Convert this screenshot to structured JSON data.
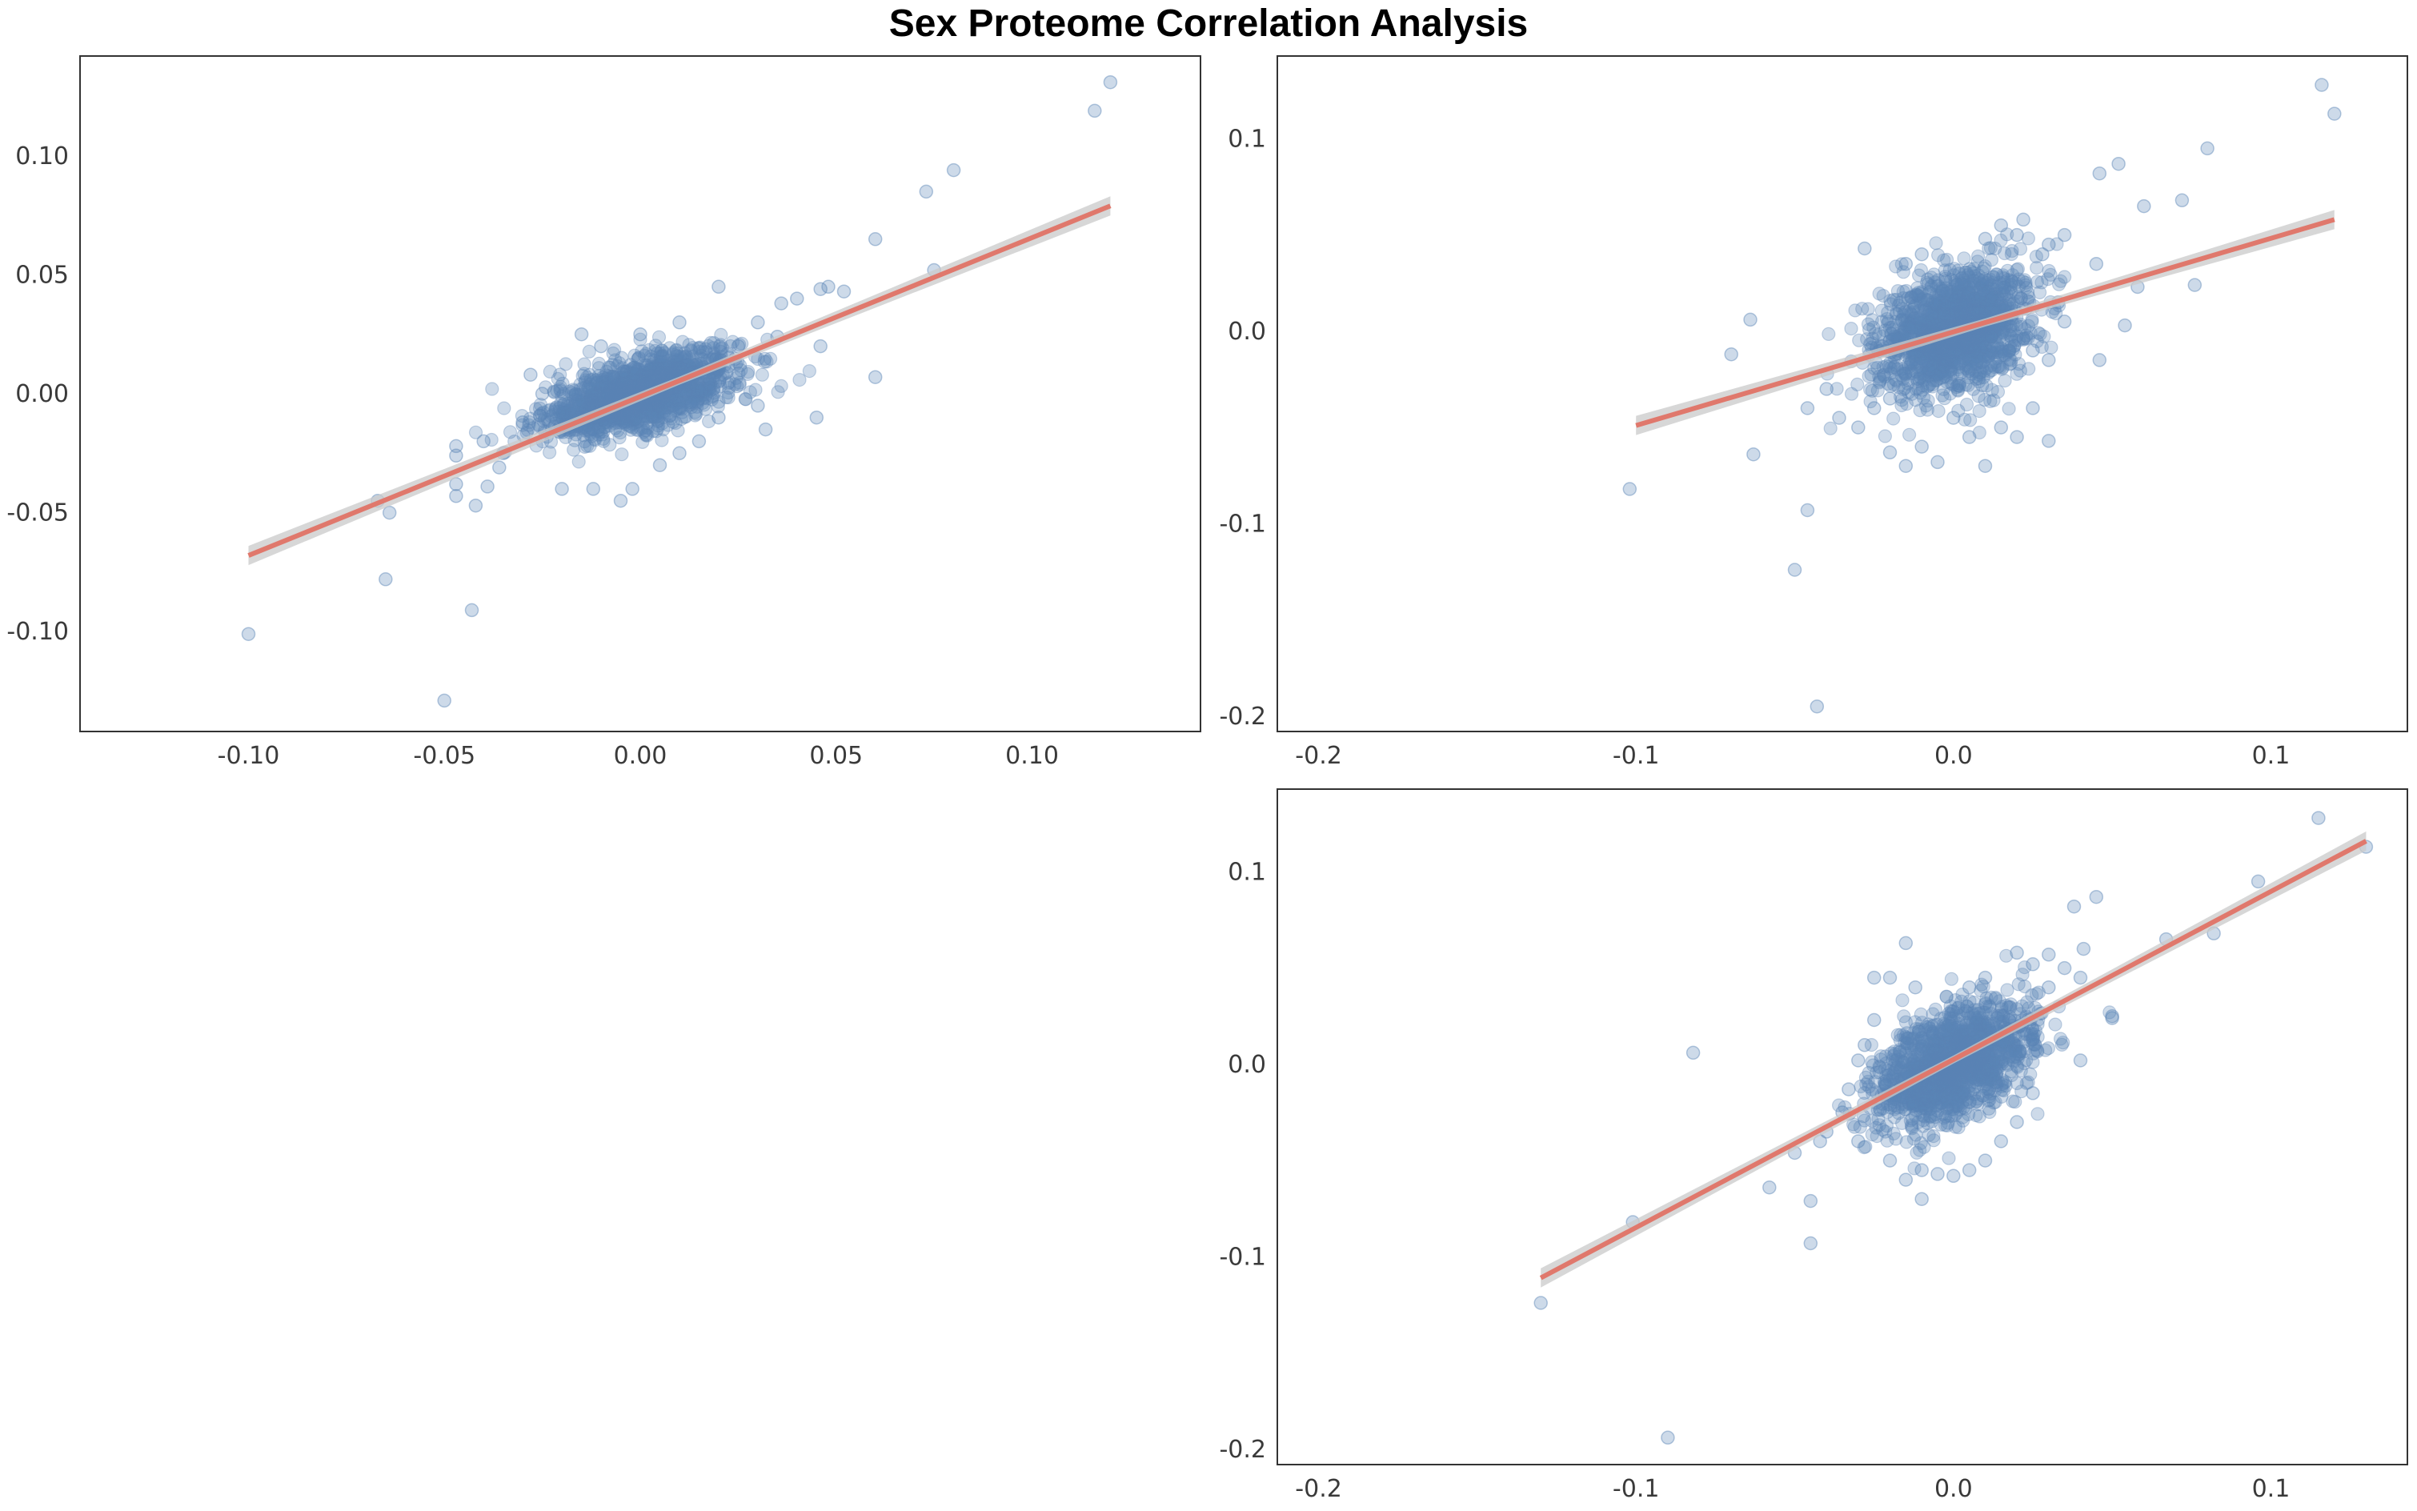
{
  "title": "Sex Proteome Correlation Analysis",
  "colors": {
    "points": "#5b84b5",
    "fit_line": "#e0786c",
    "confidence_band": "#c9c9c9",
    "frame": "#333333",
    "background": "#ffffff"
  },
  "chart_data": [
    {
      "type": "scatter",
      "title": "",
      "xlabel": "",
      "ylabel": "",
      "grid": false,
      "legend": "none",
      "xlim": [
        -0.143,
        0.143
      ],
      "ylim": [
        -0.142,
        0.142
      ],
      "x_ticks": [
        -0.1,
        -0.05,
        0.0,
        0.05,
        0.1
      ],
      "x_tick_labels": [
        "-0.10",
        "-0.05",
        "0.00",
        "0.05",
        "0.10"
      ],
      "y_ticks": [
        -0.1,
        -0.05,
        0.0,
        0.05,
        0.1
      ],
      "y_tick_labels": [
        "-0.10",
        "-0.05",
        "0.00",
        "0.05",
        "0.10"
      ],
      "fit_line": {
        "x": [
          -0.1,
          0.12
        ],
        "y": [
          -0.068,
          0.079
        ]
      },
      "cluster": {
        "center": [
          0.0,
          0.0
        ],
        "spread": [
          0.012,
          0.009
        ],
        "rho": 0.6,
        "count": 1500
      },
      "points": [
        [
          0.12,
          0.131
        ],
        [
          0.116,
          0.119
        ],
        [
          0.08,
          0.094
        ],
        [
          0.073,
          0.085
        ],
        [
          0.06,
          0.065
        ],
        [
          0.075,
          0.052
        ],
        [
          0.052,
          0.043
        ],
        [
          0.048,
          0.045
        ],
        [
          0.046,
          0.044
        ],
        [
          0.04,
          0.04
        ],
        [
          0.036,
          0.038
        ],
        [
          0.02,
          0.045
        ],
        [
          0.03,
          0.03
        ],
        [
          0.035,
          0.024
        ],
        [
          0.046,
          0.02
        ],
        [
          0.06,
          0.007
        ],
        [
          0.045,
          -0.01
        ],
        [
          0.032,
          -0.015
        ],
        [
          0.03,
          -0.005
        ],
        [
          0.02,
          -0.01
        ],
        [
          -0.1,
          -0.101
        ],
        [
          -0.065,
          -0.078
        ],
        [
          -0.043,
          -0.091
        ],
        [
          -0.05,
          -0.129
        ],
        [
          -0.067,
          -0.045
        ],
        [
          -0.064,
          -0.05
        ],
        [
          -0.047,
          -0.038
        ],
        [
          -0.047,
          -0.043
        ],
        [
          -0.042,
          -0.047
        ],
        [
          -0.039,
          -0.039
        ],
        [
          -0.047,
          -0.026
        ],
        [
          -0.047,
          -0.022
        ],
        [
          -0.036,
          -0.031
        ],
        [
          -0.04,
          -0.02
        ],
        [
          -0.035,
          -0.025
        ],
        [
          -0.03,
          -0.012
        ],
        [
          -0.028,
          0.008
        ],
        [
          -0.025,
          0.0
        ],
        [
          -0.02,
          -0.04
        ],
        [
          -0.012,
          -0.04
        ],
        [
          -0.005,
          -0.045
        ],
        [
          -0.002,
          -0.04
        ],
        [
          0.005,
          -0.03
        ],
        [
          0.015,
          -0.02
        ],
        [
          0.01,
          0.03
        ],
        [
          -0.01,
          0.02
        ],
        [
          -0.015,
          0.025
        ],
        [
          0.0,
          0.025
        ],
        [
          0.025,
          0.02
        ],
        [
          0.01,
          -0.025
        ]
      ]
    },
    {
      "type": "scatter",
      "title": "",
      "xlabel": "",
      "ylabel": "",
      "grid": false,
      "legend": "none",
      "xlim": [
        -0.213,
        0.143
      ],
      "ylim": [
        -0.208,
        0.143
      ],
      "x_ticks": [
        -0.2,
        -0.1,
        0.0,
        0.1
      ],
      "x_tick_labels": [
        "-0.2",
        "-0.1",
        "0.0",
        "0.1"
      ],
      "y_ticks": [
        -0.2,
        -0.1,
        0.0,
        0.1
      ],
      "y_tick_labels": [
        "-0.2",
        "-0.1",
        "0.0",
        "0.1"
      ],
      "fit_line": {
        "x": [
          -0.1,
          0.12
        ],
        "y": [
          -0.049,
          0.058
        ]
      },
      "cluster": {
        "center": [
          0.0,
          0.0
        ],
        "spread": [
          0.012,
          0.016
        ],
        "rho": 0.3,
        "count": 1500
      },
      "points": [
        [
          0.116,
          0.128
        ],
        [
          0.12,
          0.113
        ],
        [
          0.08,
          0.095
        ],
        [
          0.052,
          0.087
        ],
        [
          0.046,
          0.082
        ],
        [
          0.072,
          0.068
        ],
        [
          0.06,
          0.065
        ],
        [
          0.076,
          0.024
        ],
        [
          0.058,
          0.023
        ],
        [
          0.045,
          0.035
        ],
        [
          0.035,
          0.05
        ],
        [
          0.03,
          0.045
        ],
        [
          0.022,
          0.058
        ],
        [
          0.028,
          0.04
        ],
        [
          0.033,
          0.015
        ],
        [
          0.035,
          0.005
        ],
        [
          0.054,
          0.003
        ],
        [
          0.046,
          -0.015
        ],
        [
          0.03,
          -0.015
        ],
        [
          0.025,
          -0.01
        ],
        [
          -0.102,
          -0.082
        ],
        [
          -0.05,
          -0.124
        ],
        [
          -0.043,
          -0.195
        ],
        [
          -0.046,
          -0.093
        ],
        [
          -0.063,
          -0.064
        ],
        [
          -0.064,
          0.006
        ],
        [
          -0.07,
          -0.012
        ],
        [
          -0.046,
          -0.04
        ],
        [
          -0.04,
          -0.03
        ],
        [
          -0.036,
          -0.045
        ],
        [
          -0.03,
          -0.05
        ],
        [
          -0.025,
          -0.04
        ],
        [
          -0.02,
          -0.035
        ],
        [
          -0.028,
          0.043
        ],
        [
          -0.02,
          -0.063
        ],
        [
          -0.015,
          -0.07
        ],
        [
          -0.01,
          -0.06
        ],
        [
          0.0,
          -0.045
        ],
        [
          0.005,
          -0.055
        ],
        [
          0.01,
          -0.07
        ],
        [
          0.015,
          -0.05
        ],
        [
          0.02,
          -0.055
        ],
        [
          0.025,
          -0.04
        ],
        [
          0.015,
          0.055
        ],
        [
          0.02,
          0.05
        ],
        [
          0.01,
          0.048
        ],
        [
          -0.01,
          0.04
        ],
        [
          -0.015,
          0.035
        ],
        [
          0.03,
          -0.057
        ],
        [
          -0.005,
          -0.068
        ]
      ]
    },
    {
      "type": "scatter",
      "title": "",
      "xlabel": "",
      "ylabel": "",
      "grid": false,
      "legend": "none",
      "xlim": [
        -0.213,
        0.143
      ],
      "ylim": [
        -0.208,
        0.143
      ],
      "x_ticks": [
        -0.2,
        -0.1,
        0.0,
        0.1
      ],
      "x_tick_labels": [
        "-0.2",
        "-0.1",
        "0.0",
        "0.1"
      ],
      "y_ticks": [
        -0.2,
        -0.1,
        0.0,
        0.1
      ],
      "y_tick_labels": [
        "-0.2",
        "-0.1",
        "0.0",
        "0.1"
      ],
      "fit_line": {
        "x": [
          -0.13,
          0.13
        ],
        "y": [
          -0.111,
          0.116
        ]
      },
      "cluster": {
        "center": [
          0.0,
          0.0
        ],
        "spread": [
          0.012,
          0.016
        ],
        "rho": 0.5,
        "count": 1500
      },
      "points": [
        [
          0.115,
          0.128
        ],
        [
          0.13,
          0.113
        ],
        [
          0.096,
          0.095
        ],
        [
          0.082,
          0.068
        ],
        [
          0.067,
          0.065
        ],
        [
          0.045,
          0.087
        ],
        [
          0.038,
          0.082
        ],
        [
          0.05,
          0.024
        ],
        [
          0.04,
          0.002
        ],
        [
          0.041,
          0.06
        ],
        [
          0.035,
          0.05
        ],
        [
          0.04,
          0.045
        ],
        [
          0.03,
          0.057
        ],
        [
          0.025,
          0.052
        ],
        [
          0.03,
          0.04
        ],
        [
          0.02,
          0.058
        ],
        [
          0.01,
          -0.05
        ],
        [
          0.005,
          -0.055
        ],
        [
          -0.005,
          -0.057
        ],
        [
          -0.01,
          -0.055
        ],
        [
          -0.13,
          -0.124
        ],
        [
          -0.101,
          -0.082
        ],
        [
          -0.09,
          -0.194
        ],
        [
          -0.045,
          -0.093
        ],
        [
          -0.058,
          -0.064
        ],
        [
          -0.082,
          0.006
        ],
        [
          -0.05,
          -0.046
        ],
        [
          -0.045,
          -0.071
        ],
        [
          -0.042,
          -0.04
        ],
        [
          -0.04,
          -0.035
        ],
        [
          -0.035,
          -0.025
        ],
        [
          -0.033,
          -0.013
        ],
        [
          -0.03,
          0.002
        ],
        [
          -0.028,
          0.01
        ],
        [
          -0.025,
          0.023
        ],
        [
          -0.02,
          0.045
        ],
        [
          -0.015,
          0.063
        ],
        [
          -0.012,
          0.04
        ],
        [
          -0.02,
          -0.05
        ],
        [
          -0.015,
          -0.06
        ],
        [
          -0.01,
          -0.07
        ],
        [
          0.0,
          -0.058
        ],
        [
          0.015,
          -0.04
        ],
        [
          0.02,
          -0.03
        ],
        [
          0.025,
          -0.015
        ],
        [
          -0.025,
          0.045
        ],
        [
          0.01,
          0.045
        ],
        [
          0.005,
          0.04
        ],
        [
          -0.03,
          -0.04
        ],
        [
          0.05,
          0.025
        ]
      ]
    }
  ]
}
